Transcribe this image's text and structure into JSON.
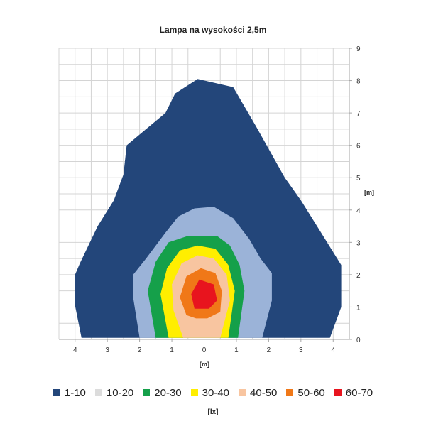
{
  "chart_data": {
    "type": "heatmap",
    "title": "Lampa na wysokości 2,5m",
    "xlabel": "[m]",
    "ylabel": "[m]",
    "x_tick_labels": [
      "4",
      "3",
      "2",
      "1",
      "0",
      "1",
      "2",
      "3",
      "4"
    ],
    "x_tick_values": [
      -4,
      -3,
      -2,
      -1,
      0,
      1,
      2,
      3,
      4
    ],
    "y_ticks": [
      "0",
      "1",
      "2",
      "3",
      "4",
      "5",
      "6",
      "7",
      "8",
      "9"
    ],
    "xlim": [
      -4.5,
      4.5
    ],
    "ylim": [
      0,
      9
    ],
    "grid": true,
    "legend_unit": "[lx]",
    "legend_position": "bottom",
    "levels": [
      {
        "name": "1-10",
        "color": "#23467a",
        "polygon": [
          [
            -3.8,
            0.05
          ],
          [
            -4.0,
            1.05
          ],
          [
            -4.0,
            2.0
          ],
          [
            -3.85,
            2.35
          ],
          [
            -3.3,
            3.5
          ],
          [
            -2.8,
            4.3
          ],
          [
            -2.5,
            5.1
          ],
          [
            -2.4,
            6.0
          ],
          [
            -1.8,
            6.5
          ],
          [
            -1.2,
            7.0
          ],
          [
            -0.9,
            7.6
          ],
          [
            -0.2,
            8.05
          ],
          [
            0.9,
            7.8
          ],
          [
            1.6,
            6.6
          ],
          [
            2.5,
            5.0
          ],
          [
            3.0,
            4.3
          ],
          [
            3.5,
            3.5
          ],
          [
            4.25,
            2.3
          ],
          [
            4.25,
            1.0
          ],
          [
            3.9,
            0.05
          ]
        ]
      },
      {
        "name": "10-20",
        "color": "#9bb3d8",
        "polygon": [
          [
            -2.0,
            0.05
          ],
          [
            -2.2,
            1.3
          ],
          [
            -2.2,
            2.0
          ],
          [
            -1.8,
            2.5
          ],
          [
            -1.2,
            3.3
          ],
          [
            -0.8,
            3.8
          ],
          [
            -0.3,
            4.05
          ],
          [
            0.3,
            4.1
          ],
          [
            0.9,
            3.75
          ],
          [
            1.4,
            3.1
          ],
          [
            1.75,
            2.5
          ],
          [
            2.1,
            2.05
          ],
          [
            2.1,
            1.2
          ],
          [
            1.8,
            0.05
          ]
        ]
      },
      {
        "name": "20-30",
        "color": "#15a04a",
        "polygon": [
          [
            -1.5,
            0.05
          ],
          [
            -1.75,
            1.5
          ],
          [
            -1.5,
            2.4
          ],
          [
            -1.1,
            3.0
          ],
          [
            -0.5,
            3.2
          ],
          [
            0.4,
            3.2
          ],
          [
            0.8,
            2.9
          ],
          [
            1.1,
            2.3
          ],
          [
            1.25,
            1.5
          ],
          [
            1.05,
            0.05
          ]
        ]
      },
      {
        "name": "30-40",
        "color": "#ffee00",
        "polygon": [
          [
            -1.1,
            0.05
          ],
          [
            -1.35,
            1.4
          ],
          [
            -1.15,
            2.2
          ],
          [
            -0.75,
            2.75
          ],
          [
            -0.2,
            2.9
          ],
          [
            0.35,
            2.8
          ],
          [
            0.75,
            2.3
          ],
          [
            0.95,
            1.5
          ],
          [
            0.75,
            0.05
          ]
        ]
      },
      {
        "name": "40-50",
        "color": "#f8c5a0",
        "polygon": [
          [
            -0.65,
            0.05
          ],
          [
            -0.95,
            0.9
          ],
          [
            -1.0,
            1.7
          ],
          [
            -0.7,
            2.35
          ],
          [
            -0.2,
            2.6
          ],
          [
            0.3,
            2.5
          ],
          [
            0.7,
            2.0
          ],
          [
            0.8,
            1.2
          ],
          [
            0.5,
            0.05
          ]
        ]
      },
      {
        "name": "50-60",
        "color": "#f07818",
        "polygon": [
          [
            -0.55,
            0.75
          ],
          [
            -0.75,
            1.3
          ],
          [
            -0.55,
            1.95
          ],
          [
            -0.1,
            2.2
          ],
          [
            0.35,
            2.05
          ],
          [
            0.55,
            1.5
          ],
          [
            0.5,
            0.85
          ],
          [
            0.1,
            0.65
          ],
          [
            -0.25,
            0.65
          ]
        ]
      },
      {
        "name": "60-70",
        "color": "#e8141e",
        "polygon": [
          [
            -0.3,
            0.95
          ],
          [
            -0.4,
            1.4
          ],
          [
            -0.15,
            1.85
          ],
          [
            0.3,
            1.7
          ],
          [
            0.4,
            1.2
          ],
          [
            0.15,
            0.95
          ]
        ]
      }
    ]
  }
}
